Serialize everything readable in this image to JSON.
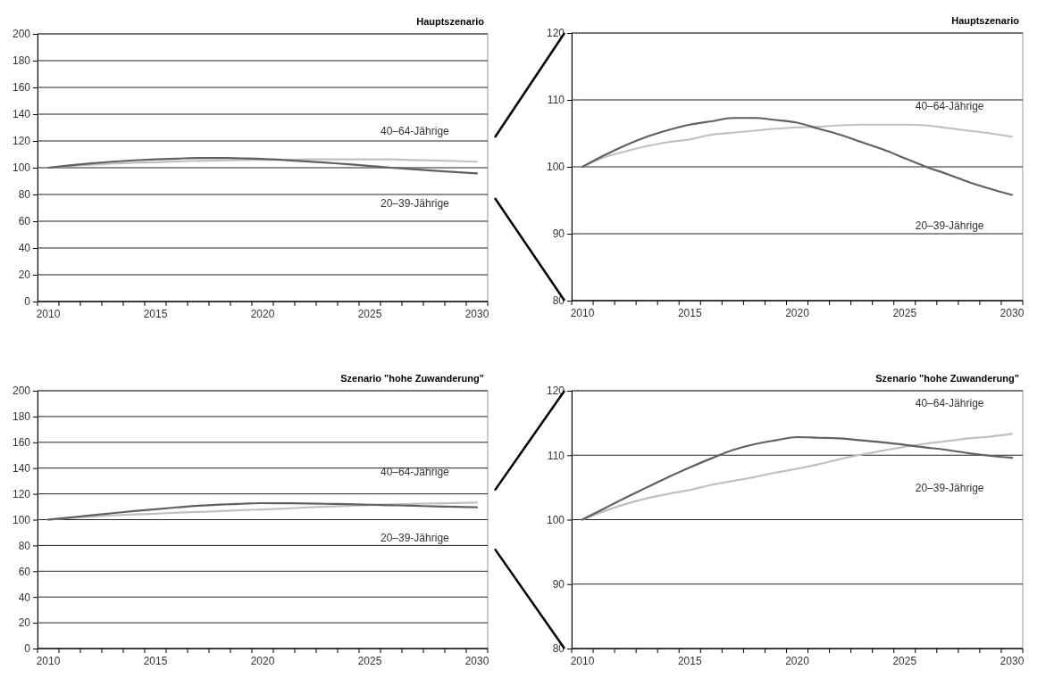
{
  "chart_data": [
    {
      "type": "line",
      "title": "Hauptszenario",
      "categories": [
        "2010",
        null,
        null,
        null,
        null,
        "2015",
        null,
        null,
        null,
        null,
        "2020",
        null,
        null,
        null,
        null,
        "2025",
        null,
        null,
        null,
        null,
        "2030"
      ],
      "ylim": [
        0,
        200
      ],
      "yticks": [
        0,
        20,
        40,
        60,
        80,
        100,
        120,
        140,
        160,
        180,
        200
      ],
      "grid": "y",
      "series": [
        {
          "name": "40–64-Jährige",
          "color": "#c0c0c0",
          "values": [
            100,
            101.4,
            102.3,
            103.1,
            103.7,
            104.1,
            104.8,
            105.1,
            105.4,
            105.7,
            105.9,
            106.0,
            106.2,
            106.3,
            106.3,
            106.3,
            106.2,
            105.8,
            105.4,
            105.0,
            104.5
          ]
        },
        {
          "name": "20–39-Jährige",
          "color": "#606060",
          "values": [
            100,
            101.7,
            103.2,
            104.5,
            105.5,
            106.3,
            106.8,
            107.3,
            107.3,
            107.0,
            106.6,
            105.7,
            104.8,
            103.7,
            102.6,
            101.3,
            100.0,
            98.9,
            97.7,
            96.7,
            95.8
          ]
        }
      ]
    },
    {
      "type": "line",
      "title": "Hauptszenario",
      "categories": [
        "2010",
        null,
        null,
        null,
        null,
        "2015",
        null,
        null,
        null,
        null,
        "2020",
        null,
        null,
        null,
        null,
        "2025",
        null,
        null,
        null,
        null,
        "2030"
      ],
      "ylim": [
        80,
        120
      ],
      "yticks": [
        80,
        90,
        100,
        110,
        120
      ],
      "grid": "y",
      "series": [
        {
          "name": "40–64-Jährige",
          "color": "#c0c0c0",
          "values": [
            100,
            101.4,
            102.3,
            103.1,
            103.7,
            104.1,
            104.8,
            105.1,
            105.4,
            105.7,
            105.9,
            106.0,
            106.2,
            106.3,
            106.3,
            106.3,
            106.2,
            105.8,
            105.4,
            105.0,
            104.5
          ]
        },
        {
          "name": "20–39-Jährige",
          "color": "#606060",
          "values": [
            100,
            101.7,
            103.2,
            104.5,
            105.5,
            106.3,
            106.8,
            107.3,
            107.3,
            107.0,
            106.6,
            105.7,
            104.8,
            103.7,
            102.6,
            101.3,
            100.0,
            98.9,
            97.7,
            96.7,
            95.8
          ]
        }
      ]
    },
    {
      "type": "line",
      "title": "Szenario \"hohe Zuwanderung\"",
      "categories": [
        "2010",
        null,
        null,
        null,
        null,
        "2015",
        null,
        null,
        null,
        null,
        "2020",
        null,
        null,
        null,
        null,
        "2025",
        null,
        null,
        null,
        null,
        "2030"
      ],
      "ylim": [
        0,
        200
      ],
      "yticks": [
        0,
        20,
        40,
        60,
        80,
        100,
        120,
        140,
        160,
        180,
        200
      ],
      "grid": "y",
      "series": [
        {
          "name": "40–64-Jährige",
          "color": "#c0c0c0",
          "values": [
            100,
            101.3,
            102.4,
            103.3,
            104.0,
            104.6,
            105.4,
            106.0,
            106.6,
            107.3,
            107.9,
            108.6,
            109.4,
            110.1,
            110.7,
            111.3,
            111.8,
            112.2,
            112.6,
            112.9,
            113.3
          ]
        },
        {
          "name": "20–39-Jährige",
          "color": "#606060",
          "values": [
            100,
            101.7,
            103.4,
            105.0,
            106.6,
            108.1,
            109.5,
            110.8,
            111.7,
            112.3,
            112.8,
            112.7,
            112.6,
            112.3,
            112.0,
            111.6,
            111.2,
            110.8,
            110.3,
            109.9,
            109.6
          ]
        }
      ]
    },
    {
      "type": "line",
      "title": "Szenario \"hohe Zuwanderung\"",
      "categories": [
        "2010",
        null,
        null,
        null,
        null,
        "2015",
        null,
        null,
        null,
        null,
        "2020",
        null,
        null,
        null,
        null,
        "2025",
        null,
        null,
        null,
        null,
        "2030"
      ],
      "ylim": [
        80,
        120
      ],
      "yticks": [
        80,
        90,
        100,
        110,
        120
      ],
      "grid": "y",
      "series": [
        {
          "name": "40–64-Jährige",
          "color": "#c0c0c0",
          "values": [
            100,
            101.3,
            102.4,
            103.3,
            104.0,
            104.6,
            105.4,
            106.0,
            106.6,
            107.3,
            107.9,
            108.6,
            109.4,
            110.1,
            110.7,
            111.3,
            111.8,
            112.2,
            112.6,
            112.9,
            113.3
          ]
        },
        {
          "name": "20–39-Jährige",
          "color": "#606060",
          "values": [
            100,
            101.7,
            103.4,
            105.0,
            106.6,
            108.1,
            109.5,
            110.8,
            111.7,
            112.3,
            112.8,
            112.7,
            112.6,
            112.3,
            112.0,
            111.6,
            111.2,
            110.8,
            110.3,
            109.9,
            109.6
          ]
        }
      ]
    }
  ]
}
